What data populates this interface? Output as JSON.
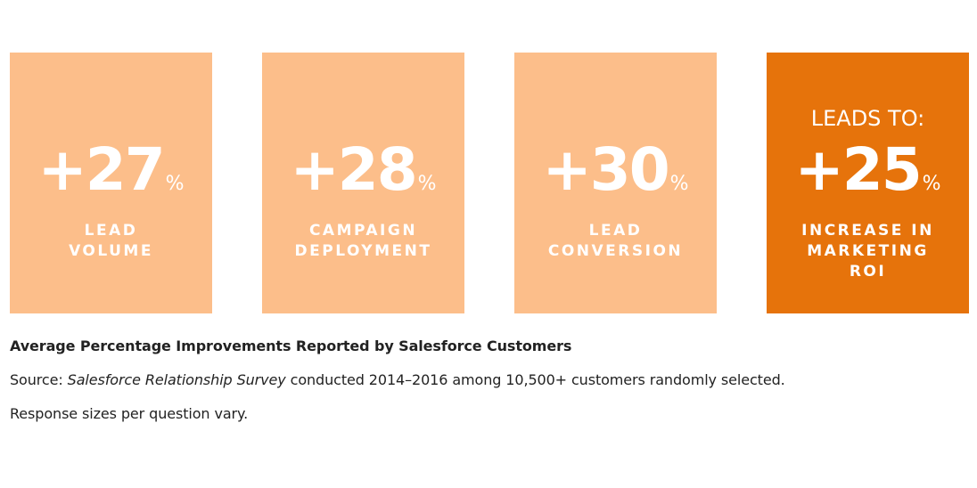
{
  "tiles": [
    {
      "lead": "",
      "value": "+27",
      "percent": "%",
      "label_lines": [
        "LEAD",
        "VOLUME"
      ],
      "color": "#fcbe8a"
    },
    {
      "lead": "",
      "value": "+28",
      "percent": "%",
      "label_lines": [
        "CAMPAIGN",
        "DEPLOYMENT"
      ],
      "color": "#fcbe8a"
    },
    {
      "lead": "",
      "value": "+30",
      "percent": "%",
      "label_lines": [
        "LEAD",
        "CONVERSION"
      ],
      "color": "#fcbe8a"
    },
    {
      "lead": "LEADS TO:",
      "value": "+25",
      "percent": "%",
      "label_lines": [
        "INCREASE IN",
        "MARKETING",
        "ROI"
      ],
      "color": "#e6730b"
    }
  ],
  "caption": {
    "title": "Average Percentage Improvements Reported by Salesforce Customers",
    "source_prefix": "Source: ",
    "source_italic": "Salesforce Relationship Survey",
    "source_suffix": " conducted 2014–2016 among 10,500+ customers randomly selected.",
    "note": "Response sizes per question vary."
  }
}
